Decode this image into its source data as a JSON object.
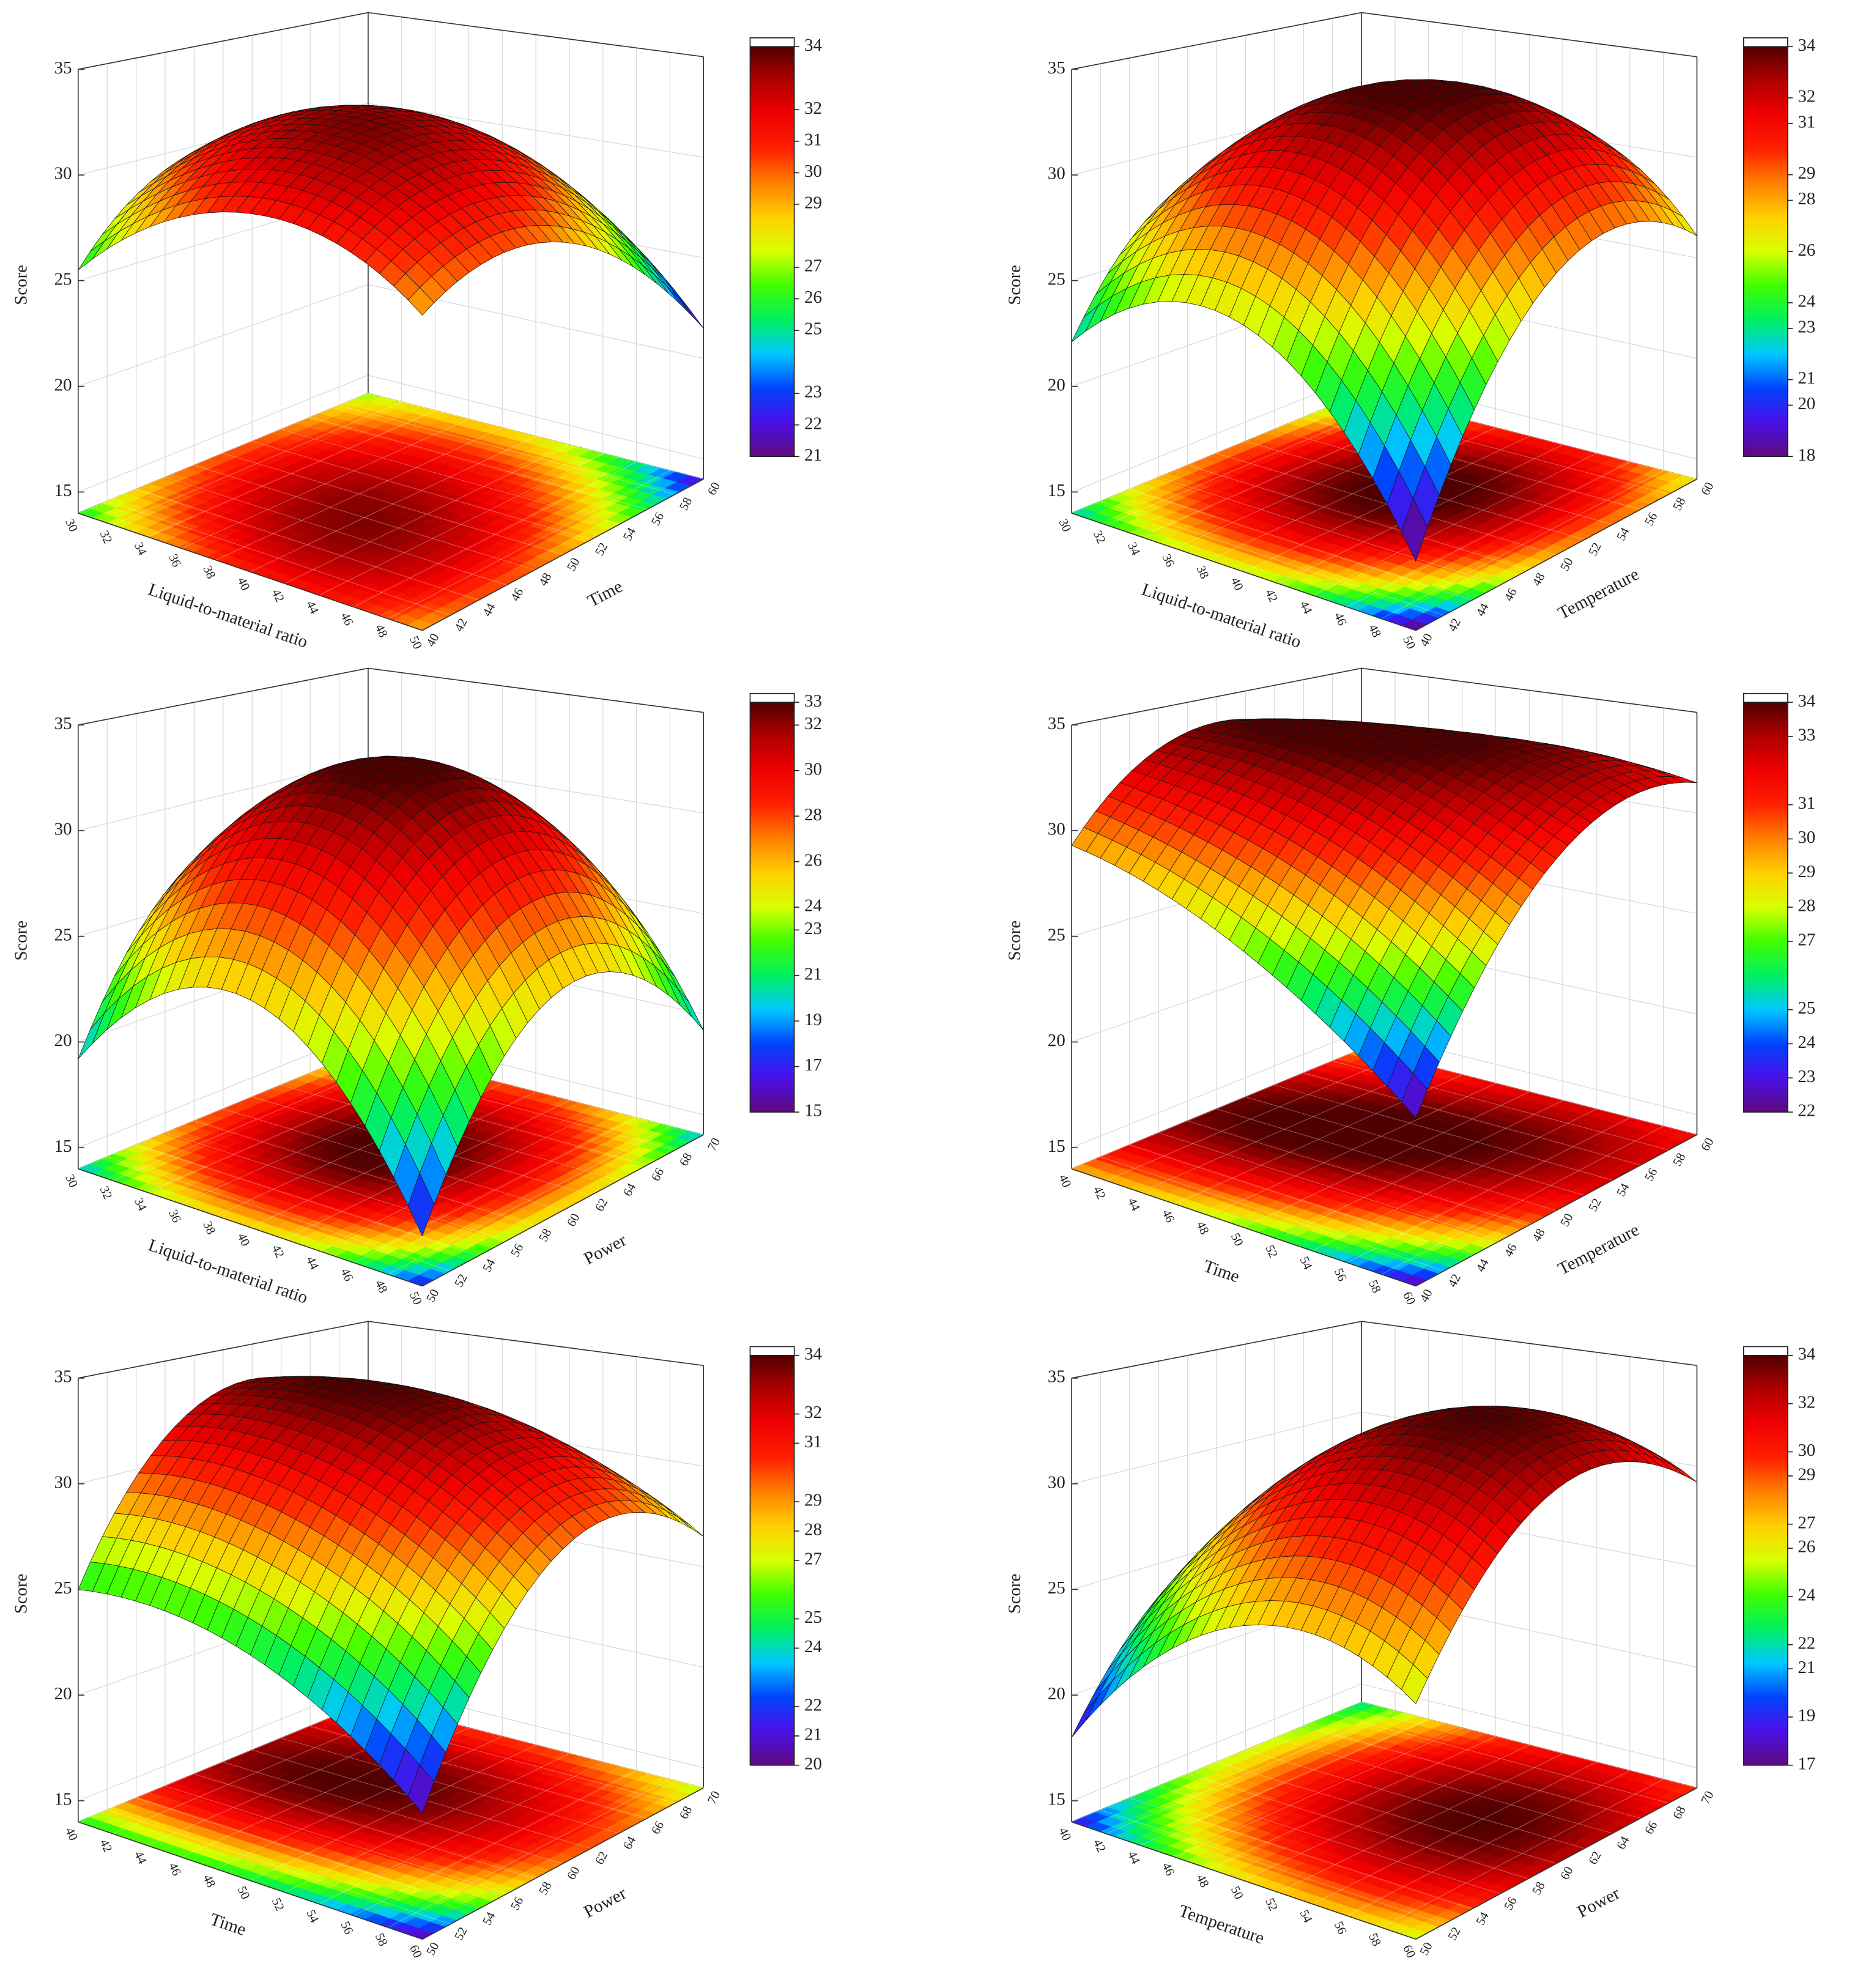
{
  "chart_data": [
    {
      "type": "surface",
      "xlabel": "Liquid-to-material ratio",
      "ylabel": "Time",
      "zlabel": "Score",
      "x": [
        30,
        35,
        40,
        45,
        50
      ],
      "y": [
        40,
        45,
        50,
        55,
        60
      ],
      "z": [
        [
          25.5,
          28.8,
          30.0,
          29.4,
          26.8
        ],
        [
          29.2,
          31.9,
          32.6,
          31.4,
          28.3
        ],
        [
          31.0,
          33.2,
          33.3,
          31.6,
          27.9
        ],
        [
          31.0,
          32.6,
          32.2,
          29.9,
          25.6
        ],
        [
          29.0,
          30.1,
          29.2,
          26.3,
          21.5
        ]
      ],
      "xlim": [
        30,
        50
      ],
      "ylim": [
        40,
        60
      ],
      "zlim": [
        14,
        35
      ],
      "xticks": [
        30,
        32,
        34,
        36,
        38,
        40,
        42,
        44,
        46,
        48,
        50
      ],
      "yticks": [
        40,
        42,
        44,
        46,
        48,
        50,
        52,
        54,
        56,
        58,
        60
      ],
      "zticks": [
        15,
        20,
        25,
        30,
        35
      ],
      "colorbar": {
        "lim": [
          21,
          34
        ],
        "ticks": [
          21,
          22,
          23,
          25,
          26,
          27,
          29,
          30,
          31,
          32,
          34
        ]
      },
      "colormap": [
        "#5e0a7e",
        "#4b10e8",
        "#0044ff",
        "#00c8ff",
        "#00f060",
        "#40ff00",
        "#d8ff00",
        "#ffd000",
        "#ff8000",
        "#ff2000",
        "#f00000",
        "#b00000",
        "#500000"
      ],
      "grid": true
    },
    {
      "type": "surface",
      "xlabel": "Liquid-to-material ratio",
      "ylabel": "Temperature",
      "zlabel": "Score",
      "x": [
        30,
        35,
        40,
        45,
        50
      ],
      "y": [
        40,
        45,
        50,
        55,
        60
      ],
      "z": [
        [
          22.1,
          26.8,
          28.5,
          27.2,
          22.9
        ],
        [
          25.4,
          30.6,
          32.8,
          32.0,
          28.2
        ],
        [
          25.7,
          31.4,
          34.1,
          33.8,
          30.5
        ],
        [
          23.0,
          29.2,
          32.4,
          32.6,
          29.8
        ],
        [
          17.3,
          24.0,
          27.7,
          28.4,
          26.1
        ]
      ],
      "xlim": [
        30,
        50
      ],
      "ylim": [
        40,
        60
      ],
      "zlim": [
        14,
        35
      ],
      "xticks": [
        30,
        32,
        34,
        36,
        38,
        40,
        42,
        44,
        46,
        48,
        50
      ],
      "yticks": [
        40,
        42,
        44,
        46,
        48,
        50,
        52,
        54,
        56,
        58,
        60
      ],
      "zticks": [
        15,
        20,
        25,
        30,
        35
      ],
      "colorbar": {
        "lim": [
          18,
          34
        ],
        "ticks": [
          18,
          20,
          21,
          23,
          24,
          26,
          28,
          29,
          31,
          32,
          34
        ]
      },
      "colormap": [
        "#5e0a7e",
        "#4b10e8",
        "#0044ff",
        "#00c8ff",
        "#00f060",
        "#40ff00",
        "#d8ff00",
        "#ffd000",
        "#ff8000",
        "#ff2000",
        "#f00000",
        "#b00000",
        "#500000"
      ],
      "grid": true
    },
    {
      "type": "surface",
      "xlabel": "Liquid-to-material ratio",
      "ylabel": "Power",
      "zlabel": "Score",
      "x": [
        30,
        35,
        40,
        45,
        50
      ],
      "y": [
        50,
        55,
        60,
        65,
        70
      ],
      "z": [
        [
          19.2,
          25.1,
          27.6,
          26.5,
          22.0
        ],
        [
          23.7,
          29.7,
          32.1,
          31.1,
          26.5
        ],
        [
          24.8,
          30.7,
          33.2,
          32.1,
          27.6
        ],
        [
          22.3,
          28.3,
          30.7,
          29.7,
          25.1
        ],
        [
          16.4,
          22.3,
          24.8,
          23.7,
          19.2
        ]
      ],
      "xlim": [
        30,
        50
      ],
      "ylim": [
        50,
        70
      ],
      "zlim": [
        14,
        35
      ],
      "xticks": [
        30,
        32,
        34,
        36,
        38,
        40,
        42,
        44,
        46,
        48,
        50
      ],
      "yticks": [
        50,
        52,
        54,
        56,
        58,
        60,
        62,
        64,
        66,
        68,
        70
      ],
      "zticks": [
        15,
        20,
        25,
        30,
        35
      ],
      "colorbar": {
        "lim": [
          15,
          33
        ],
        "ticks": [
          15,
          17,
          19,
          21,
          23,
          24,
          26,
          28,
          30,
          32,
          33
        ]
      },
      "colormap": [
        "#5e0a7e",
        "#4b10e8",
        "#0044ff",
        "#00c8ff",
        "#00f060",
        "#40ff00",
        "#d8ff00",
        "#ffd000",
        "#ff8000",
        "#ff2000",
        "#f00000",
        "#b00000",
        "#500000"
      ],
      "grid": true
    },
    {
      "type": "surface",
      "xlabel": "Time",
      "ylabel": "Temperature",
      "zlabel": "Score",
      "x": [
        40,
        45,
        50,
        55,
        60
      ],
      "y": [
        40,
        45,
        50,
        55,
        60
      ],
      "z": [
        [
          29.3,
          32.6,
          33.7,
          32.7,
          29.5
        ],
        [
          28.6,
          32.4,
          34.2,
          33.7,
          31.1
        ],
        [
          27.1,
          31.6,
          33.9,
          34.0,
          32.0
        ],
        [
          24.9,
          30.0,
          32.8,
          33.6,
          32.1
        ],
        [
          22.0,
          27.6,
          31.1,
          32.4,
          31.5
        ]
      ],
      "xlim": [
        40,
        60
      ],
      "ylim": [
        40,
        60
      ],
      "zlim": [
        14,
        35
      ],
      "xticks": [
        40,
        42,
        44,
        46,
        48,
        50,
        52,
        54,
        56,
        58,
        60
      ],
      "yticks": [
        40,
        42,
        44,
        46,
        48,
        50,
        52,
        54,
        56,
        58,
        60
      ],
      "zticks": [
        15,
        20,
        25,
        30,
        35
      ],
      "colorbar": {
        "lim": [
          22,
          34
        ],
        "ticks": [
          22,
          23,
          24,
          25,
          27,
          28,
          29,
          30,
          31,
          33,
          34
        ]
      },
      "colormap": [
        "#5e0a7e",
        "#4b10e8",
        "#0044ff",
        "#00c8ff",
        "#00f060",
        "#40ff00",
        "#d8ff00",
        "#ffd000",
        "#ff8000",
        "#ff2000",
        "#f00000",
        "#b00000",
        "#500000"
      ],
      "grid": true
    },
    {
      "type": "surface",
      "xlabel": "Time",
      "ylabel": "Power",
      "zlabel": "Score",
      "x": [
        40,
        45,
        50,
        55,
        60
      ],
      "y": [
        50,
        55,
        60,
        65,
        70
      ],
      "z": [
        [
          25.0,
          30.5,
          33.0,
          32.6,
          29.1
        ],
        [
          25.4,
          31.1,
          33.8,
          33.4,
          30.1
        ],
        [
          24.7,
          30.5,
          33.4,
          33.2,
          30.0
        ],
        [
          22.9,
          28.9,
          31.9,
          31.8,
          28.8
        ],
        [
          20.0,
          26.1,
          29.3,
          29.4,
          26.5
        ]
      ],
      "xlim": [
        40,
        60
      ],
      "ylim": [
        50,
        70
      ],
      "zlim": [
        14,
        35
      ],
      "xticks": [
        40,
        42,
        44,
        46,
        48,
        50,
        52,
        54,
        56,
        58,
        60
      ],
      "yticks": [
        50,
        52,
        54,
        56,
        58,
        60,
        62,
        64,
        66,
        68,
        70
      ],
      "zticks": [
        15,
        20,
        25,
        30,
        35
      ],
      "colorbar": {
        "lim": [
          20,
          34
        ],
        "ticks": [
          20,
          21,
          22,
          24,
          25,
          27,
          28,
          29,
          31,
          32,
          34
        ]
      },
      "colormap": [
        "#5e0a7e",
        "#4b10e8",
        "#0044ff",
        "#00c8ff",
        "#00f060",
        "#40ff00",
        "#d8ff00",
        "#ffd000",
        "#ff8000",
        "#ff2000",
        "#f00000",
        "#b00000",
        "#500000"
      ],
      "grid": true
    },
    {
      "type": "surface",
      "xlabel": "Temperature",
      "ylabel": "Power",
      "zlabel": "Score",
      "x": [
        40,
        45,
        50,
        55,
        60
      ],
      "y": [
        50,
        55,
        60,
        65,
        70
      ],
      "z": [
        [
          18.0,
          22.7,
          25.0,
          24.7,
          22.0
        ],
        [
          23.2,
          27.9,
          30.2,
          29.9,
          27.2
        ],
        [
          26.1,
          30.8,
          33.1,
          32.8,
          30.1
        ],
        [
          26.8,
          31.5,
          33.8,
          33.5,
          30.8
        ],
        [
          25.2,
          29.9,
          32.2,
          31.9,
          29.2
        ]
      ],
      "xlim": [
        40,
        60
      ],
      "ylim": [
        50,
        70
      ],
      "zlim": [
        14,
        35
      ],
      "xticks": [
        40,
        42,
        44,
        46,
        48,
        50,
        52,
        54,
        56,
        58,
        60
      ],
      "yticks": [
        50,
        52,
        54,
        56,
        58,
        60,
        62,
        64,
        66,
        68,
        70
      ],
      "zticks": [
        15,
        20,
        25,
        30,
        35
      ],
      "colorbar": {
        "lim": [
          17,
          34
        ],
        "ticks": [
          17,
          19,
          21,
          22,
          24,
          26,
          27,
          29,
          30,
          32,
          34
        ]
      },
      "colormap": [
        "#5e0a7e",
        "#4b10e8",
        "#0044ff",
        "#00c8ff",
        "#00f060",
        "#40ff00",
        "#d8ff00",
        "#ffd000",
        "#ff8000",
        "#ff2000",
        "#f00000",
        "#b00000",
        "#500000"
      ],
      "grid": true
    }
  ]
}
